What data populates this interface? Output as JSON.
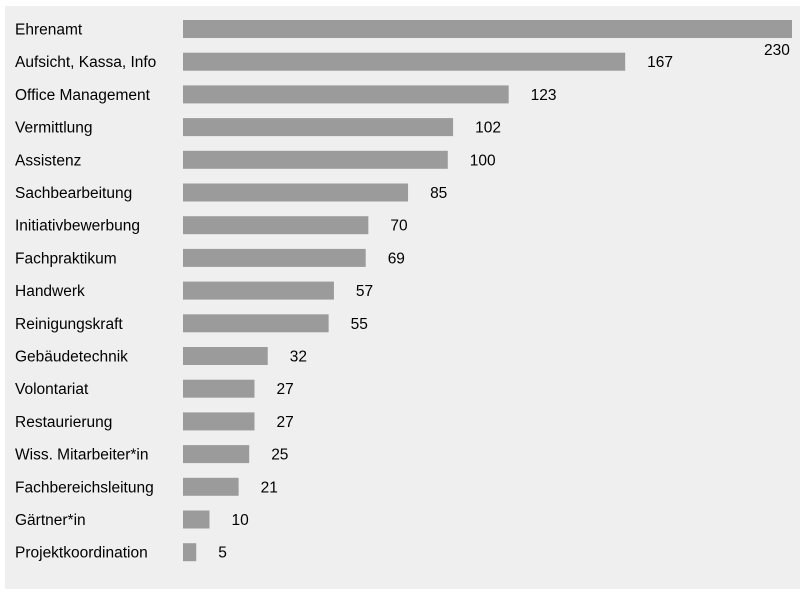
{
  "chart_data": {
    "type": "bar",
    "orientation": "horizontal",
    "categories": [
      "Ehrenamt",
      "Aufsicht, Kassa, Info",
      "Office Management",
      "Vermittlung",
      "Assistenz",
      "Sachbearbeitung",
      "Initiativbewerbung",
      "Fachpraktikum",
      "Handwerk",
      "Reinigungskraft",
      "Gebäudetechnik",
      "Volontariat",
      "Restaurierung",
      "Wiss. Mitarbeiter*in",
      "Fachbereichsleitung",
      "Gärtner*in",
      "Projektkoordination"
    ],
    "values": [
      230,
      167,
      123,
      102,
      100,
      85,
      70,
      69,
      57,
      55,
      32,
      27,
      27,
      25,
      21,
      10,
      5
    ],
    "xlim": [
      0,
      230
    ],
    "grid": false,
    "legend": "none",
    "bar_color": "#9b9b9b",
    "background_color": "#efefef"
  }
}
